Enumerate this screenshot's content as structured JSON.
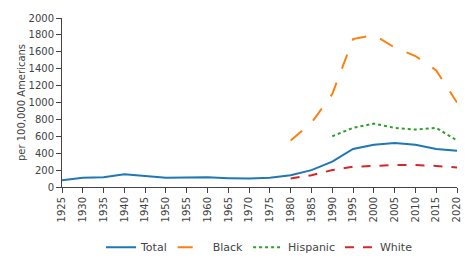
{
  "chart_data": {
    "type": "line",
    "x": [
      1925,
      1930,
      1935,
      1940,
      1945,
      1950,
      1955,
      1960,
      1965,
      1970,
      1975,
      1980,
      1985,
      1990,
      1995,
      2000,
      2005,
      2010,
      2015,
      2020
    ],
    "series": [
      {
        "name": "Total",
        "line_style": "solid",
        "values": [
          80,
          110,
          115,
          150,
          130,
          110,
          112,
          115,
          105,
          100,
          110,
          140,
          200,
          300,
          450,
          500,
          520,
          500,
          450,
          430
        ]
      },
      {
        "name": "Black",
        "line_style": "longdash",
        "values": [
          null,
          null,
          null,
          null,
          null,
          null,
          null,
          null,
          null,
          null,
          null,
          550,
          760,
          1100,
          1750,
          1800,
          1650,
          1550,
          1380,
          1000
        ]
      },
      {
        "name": "Hispanic",
        "line_style": "dot",
        "values": [
          null,
          null,
          null,
          null,
          null,
          null,
          null,
          null,
          null,
          null,
          null,
          null,
          null,
          600,
          700,
          750,
          700,
          680,
          700,
          550
        ]
      },
      {
        "name": "White",
        "line_style": "dash",
        "values": [
          null,
          null,
          null,
          null,
          null,
          null,
          null,
          null,
          null,
          null,
          null,
          100,
          140,
          200,
          240,
          250,
          260,
          260,
          250,
          230
        ]
      }
    ],
    "ylabel": "per 100,000 Americans",
    "xlim": [
      1925,
      2020
    ],
    "xticks": [
      1925,
      1930,
      1935,
      1940,
      1945,
      1950,
      1955,
      1960,
      1965,
      1970,
      1975,
      1980,
      1985,
      1990,
      1995,
      2000,
      2005,
      2010,
      2015,
      2020
    ],
    "ylim": [
      0,
      2000
    ],
    "yticks": [
      0,
      200,
      400,
      600,
      800,
      1000,
      1200,
      1400,
      1600,
      1800,
      2000
    ],
    "grid": false,
    "legend": "bottom"
  }
}
